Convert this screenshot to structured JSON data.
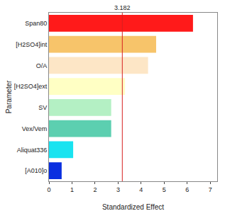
{
  "chart_data": {
    "type": "bar",
    "orientation": "horizontal",
    "categories": [
      "Span80",
      "[H2SO4]int",
      "O/A",
      "[H2SO4]ext",
      "SV",
      "Vex/Vem",
      "Aliquat336",
      "[A010]o"
    ],
    "values": [
      6.25,
      4.65,
      4.3,
      3.3,
      2.7,
      2.7,
      1.05,
      0.55
    ],
    "colors": [
      "#ff1a1a",
      "#f7c46a",
      "#fde6c6",
      "#ffffc4",
      "#b4f0c4",
      "#5ccfb0",
      "#19e3f0",
      "#0a2fe0"
    ],
    "x_label": "Standardized Effect",
    "y_label": "Parameter",
    "xlim": [
      0,
      7.3
    ],
    "xticks": [
      0,
      1,
      2,
      3,
      4,
      5,
      6,
      7
    ],
    "reference_line": {
      "value": 3.182,
      "label": "3.182",
      "color": "#d62020"
    },
    "grid": false
  }
}
